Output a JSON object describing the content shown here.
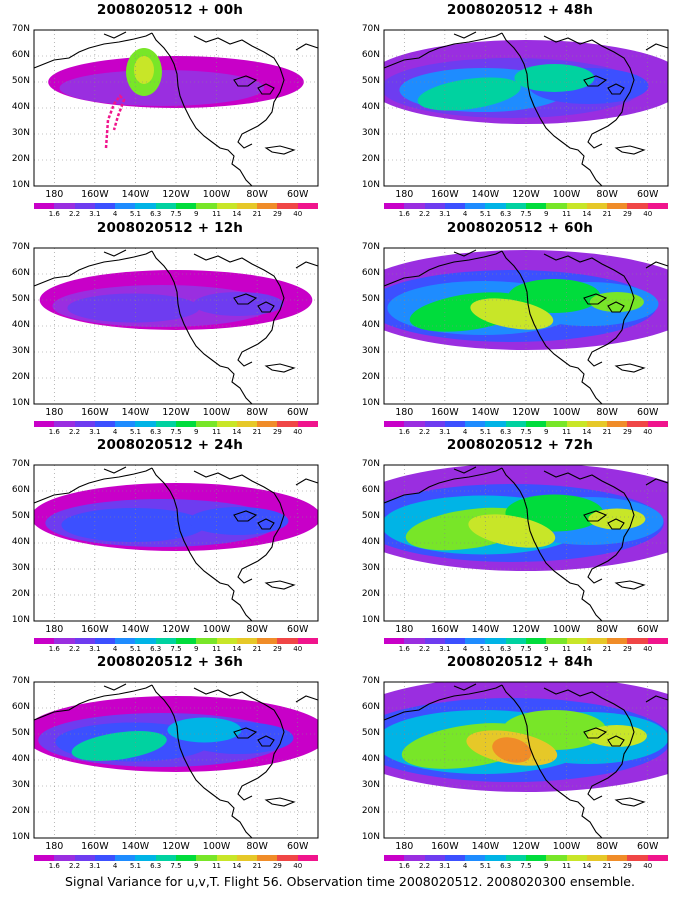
{
  "panels": [
    {
      "title": "2008020512 + 00h",
      "level": 0,
      "col": 0,
      "row": 0,
      "track": true
    },
    {
      "title": "2008020512 + 48h",
      "level": 2,
      "col": 1,
      "row": 0
    },
    {
      "title": "2008020512 + 12h",
      "level": 0.5,
      "col": 0,
      "row": 1
    },
    {
      "title": "2008020512 + 60h",
      "level": 3,
      "col": 1,
      "row": 1
    },
    {
      "title": "2008020512 + 24h",
      "level": 1,
      "col": 0,
      "row": 2
    },
    {
      "title": "2008020512 + 72h",
      "level": 3.5,
      "col": 1,
      "row": 2
    },
    {
      "title": "2008020512 + 36h",
      "level": 1.5,
      "col": 0,
      "row": 3
    },
    {
      "title": "2008020512 + 84h",
      "level": 4,
      "col": 1,
      "row": 3
    }
  ],
  "lat_labels": [
    "70N",
    "60N",
    "50N",
    "40N",
    "30N",
    "20N",
    "10N"
  ],
  "lon_labels": [
    "180",
    "160W",
    "140W",
    "120W",
    "100W",
    "80W",
    "60W"
  ],
  "colorbar": {
    "labels": [
      "1.6",
      "2.2",
      "3.1",
      "4",
      "5.1",
      "6.3",
      "7.5",
      "9",
      "11",
      "14",
      "21",
      "29",
      "40"
    ],
    "colors": [
      "#c800c8",
      "#9a2ee0",
      "#6e3cf0",
      "#3c50ff",
      "#1e8cff",
      "#00b4e6",
      "#00d2a0",
      "#00dc3c",
      "#78e628",
      "#c8e628",
      "#e6c828",
      "#f08c28",
      "#f04646",
      "#f0148c"
    ]
  },
  "caption": "Signal Variance for u,v,T. Flight 56. Observation time 2008020512. 2008020300 ensemble."
}
